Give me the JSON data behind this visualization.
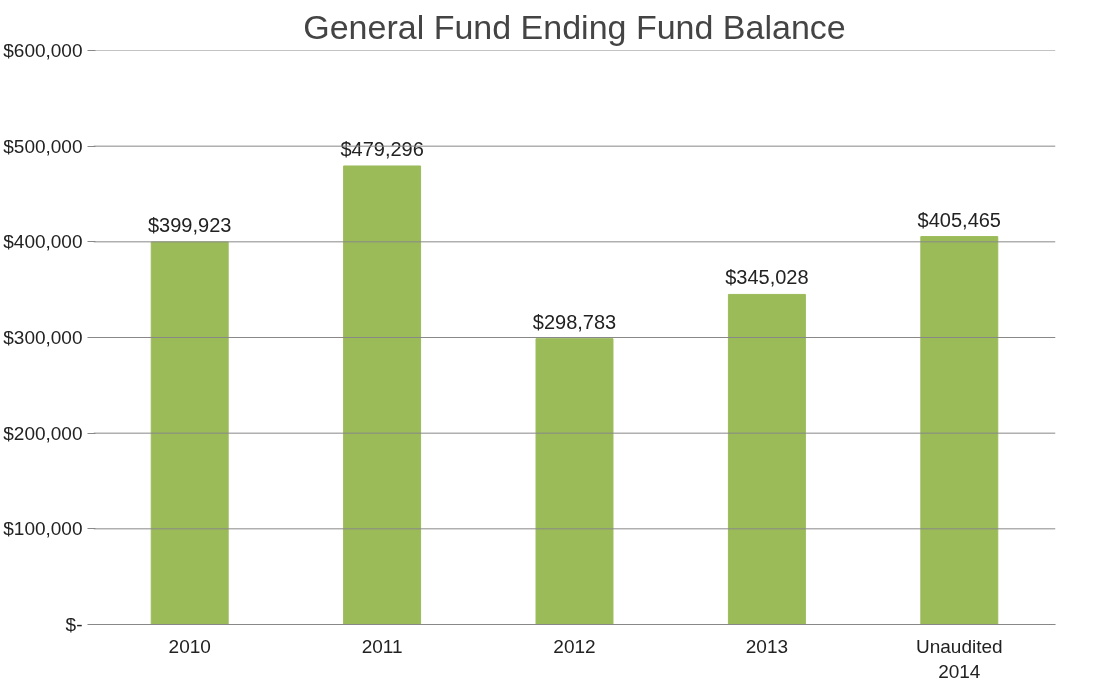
{
  "chart_data": {
    "type": "bar",
    "title": "General Fund Ending Fund Balance",
    "categories": [
      "2010",
      "2011",
      "2012",
      "2013",
      "Unaudited\n2014"
    ],
    "values": [
      399923,
      479296,
      298783,
      345028,
      405465
    ],
    "value_labels": [
      "$399,923",
      "$479,296",
      "$298,783",
      "$345,028",
      "$405,465"
    ],
    "color": "#9bbb59",
    "ylim": [
      0,
      600000
    ],
    "yticks": [
      {
        "value": 0,
        "label": "$-"
      },
      {
        "value": 100000,
        "label": "$100,000"
      },
      {
        "value": 200000,
        "label": "$200,000"
      },
      {
        "value": 300000,
        "label": "$300,000"
      },
      {
        "value": 400000,
        "label": "$400,000"
      },
      {
        "value": 500000,
        "label": "$500,000"
      },
      {
        "value": 600000,
        "label": "$600,000"
      }
    ],
    "grid": "y"
  }
}
